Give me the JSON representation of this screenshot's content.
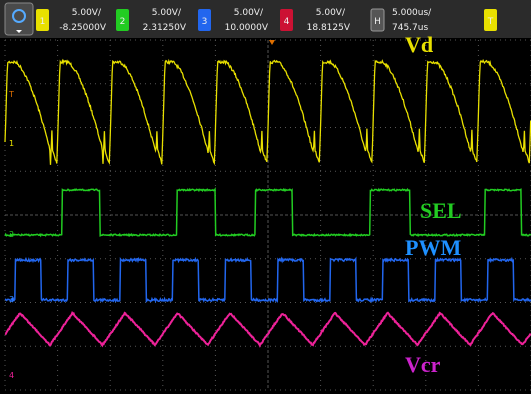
{
  "toolbar": {
    "channels": [
      {
        "label": "1",
        "scale": "5.00V/",
        "offset": "-8.25000V"
      },
      {
        "label": "2",
        "scale": "5.00V/",
        "offset": "2.31250V"
      },
      {
        "label": "3",
        "scale": "5.00V/",
        "offset": "10.0000V"
      },
      {
        "label": "4",
        "scale": "5.00V/",
        "offset": "18.8125V"
      }
    ],
    "horizontal": {
      "label": "H",
      "scale": "5.000us/",
      "delay": "745.7us"
    },
    "trigger": {
      "label": "T"
    }
  },
  "traces": [
    {
      "label": "Vd"
    },
    {
      "label": "SEL"
    },
    {
      "label": "PWM"
    },
    {
      "label": "Vcr"
    }
  ],
  "markers": [
    "T",
    "1",
    "2",
    "3",
    "4"
  ]
}
